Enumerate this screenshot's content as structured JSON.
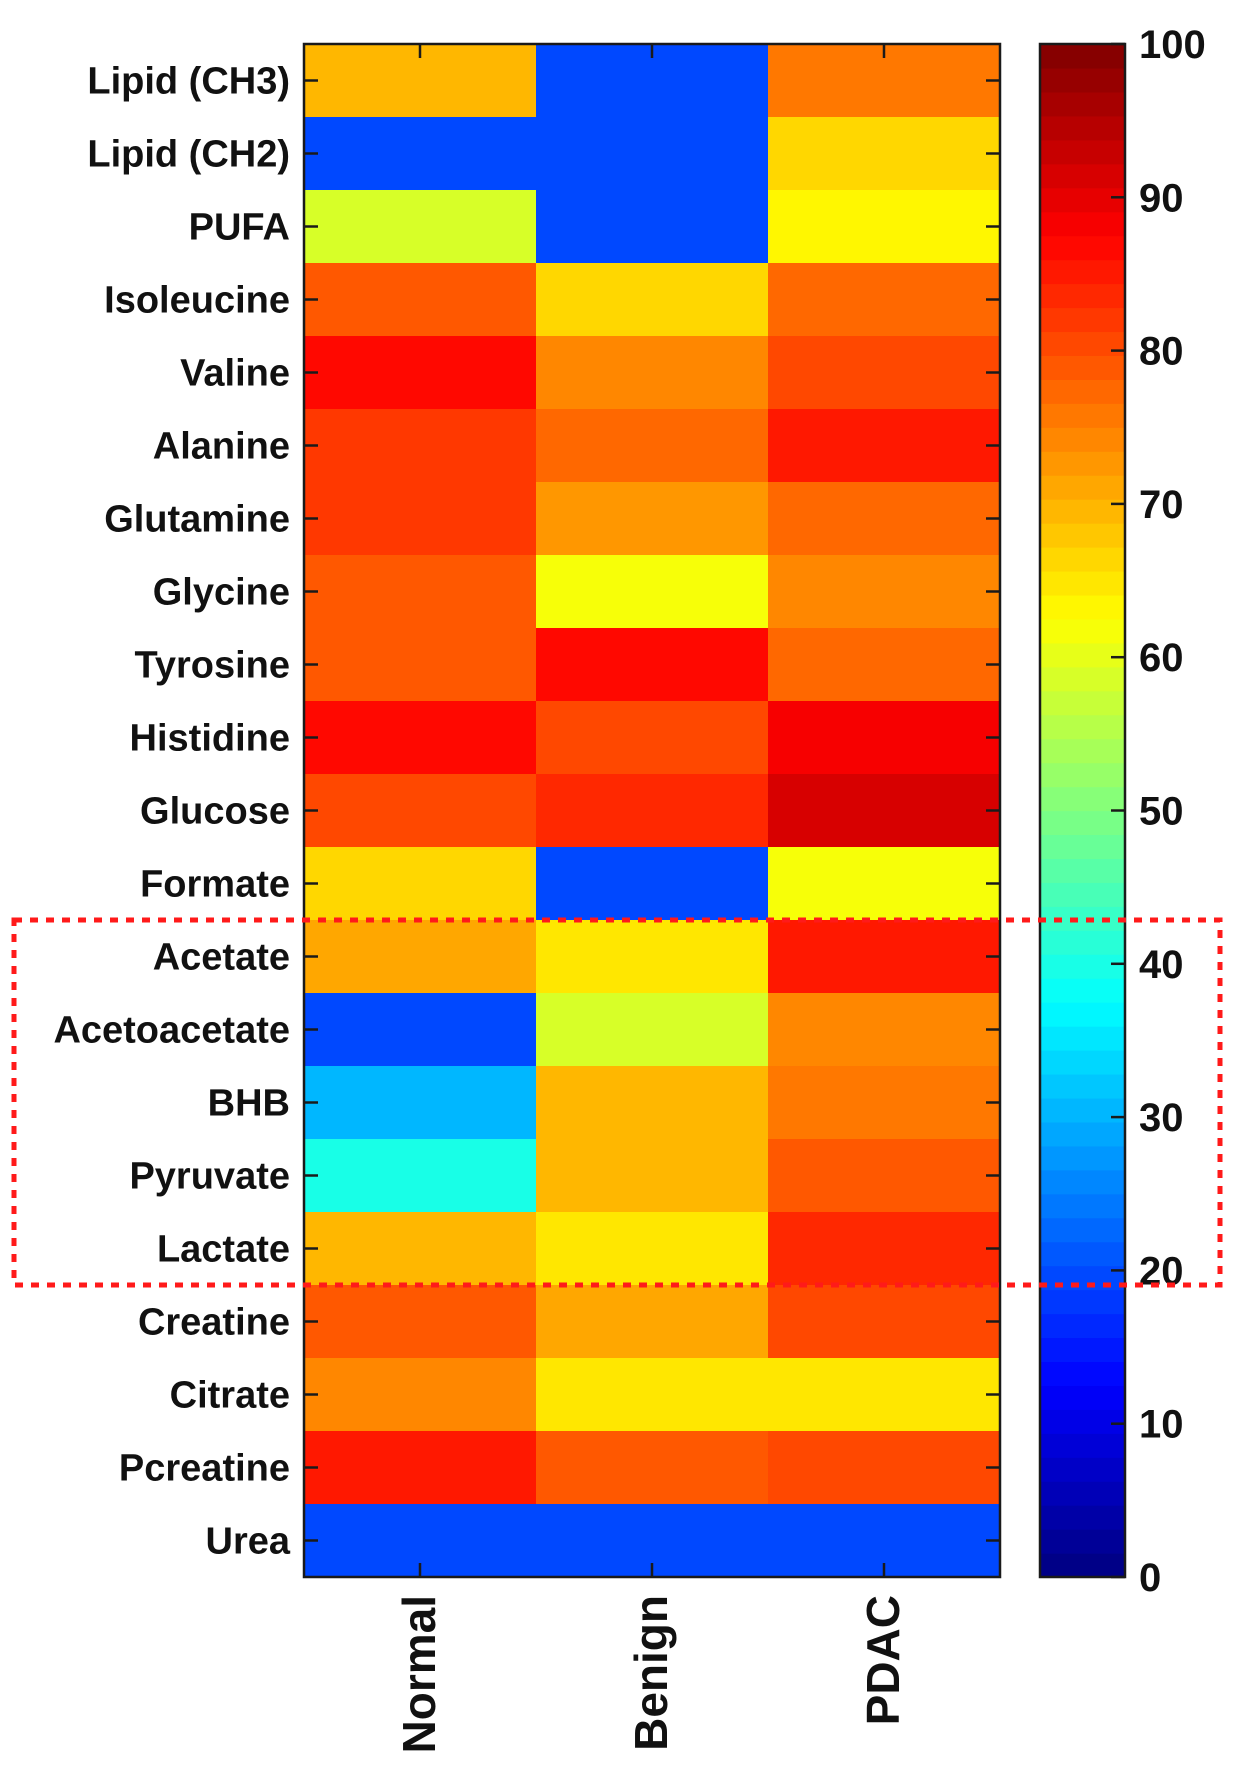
{
  "chart_data": {
    "type": "heatmap",
    "rows": [
      "Lipid (CH3)",
      "Lipid (CH2)",
      "PUFA",
      "Isoleucine",
      "Valine",
      "Alanine",
      "Glutamine",
      "Glycine",
      "Tyrosine",
      "Histidine",
      "Glucose",
      "Formate",
      "Acetate",
      "Acetoacetate",
      "BHB",
      "Pyruvate",
      "Lactate",
      "Creatine",
      "Citrate",
      "Pcreatine",
      "Urea"
    ],
    "columns": [
      "Normal",
      "Benign",
      "PDAC"
    ],
    "values": [
      [
        70,
        20,
        75
      ],
      [
        20,
        20,
        67
      ],
      [
        58,
        20,
        64
      ],
      [
        79,
        67,
        77
      ],
      [
        87,
        74,
        81
      ],
      [
        82,
        78,
        85
      ],
      [
        82,
        73,
        78
      ],
      [
        79,
        61,
        74
      ],
      [
        79,
        86,
        78
      ],
      [
        86,
        80,
        88
      ],
      [
        81,
        83,
        92
      ],
      [
        67,
        20,
        62
      ],
      [
        71,
        65,
        85
      ],
      [
        20,
        58,
        74
      ],
      [
        30,
        70,
        76
      ],
      [
        40,
        70,
        79
      ],
      [
        70,
        65,
        84
      ],
      [
        79,
        71,
        80
      ],
      [
        74,
        65,
        65
      ],
      [
        85,
        79,
        80
      ],
      [
        20,
        20,
        20
      ]
    ],
    "colorbar": {
      "min": 0,
      "max": 100,
      "ticks": [
        0,
        10,
        20,
        30,
        40,
        50,
        60,
        70,
        80,
        90,
        100
      ],
      "colormap": "jet"
    },
    "highlight": {
      "rows": [
        "Acetate",
        "Acetoacetate",
        "BHB",
        "Pyruvate",
        "Lactate"
      ],
      "style": "dotted",
      "color": "#ff1a1a"
    },
    "title": "",
    "xlabel": "",
    "ylabel": ""
  }
}
